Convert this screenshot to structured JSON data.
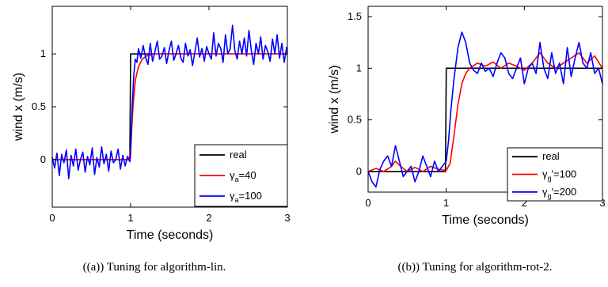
{
  "charts": [
    {
      "caption": "((a)) Tuning for algorithm-lin.",
      "chart_data": {
        "type": "line",
        "xlabel": "Time (seconds)",
        "ylabel": "wind x (m/s)",
        "xlim": [
          0,
          3
        ],
        "ylim": [
          -0.45,
          1.45
        ],
        "xticks": [
          "0",
          "1",
          "2",
          "3"
        ],
        "yticks": [
          "0",
          "0.5",
          "1"
        ],
        "grid": false,
        "legend_position": "bottom-right",
        "series": [
          {
            "name": "real",
            "label_main": "real",
            "label_sub": "",
            "label_tail": "",
            "color": "#000000",
            "x": [
              0,
              0.99,
              1.0,
              3.0
            ],
            "y": [
              0,
              0,
              1,
              1
            ]
          },
          {
            "name": "γa=40",
            "label_main": "γ",
            "label_sub": "a",
            "label_tail": "=40",
            "color": "#ff0000",
            "x": [
              0,
              0.5,
              0.98,
              1.0,
              1.03,
              1.06,
              1.1,
              1.15,
              1.2,
              1.3,
              1.5,
              2.0,
              2.5,
              3.0
            ],
            "y": [
              0,
              0,
              0,
              0.1,
              0.5,
              0.75,
              0.88,
              0.95,
              0.98,
              1.0,
              1.0,
              1.0,
              1.0,
              1.0
            ]
          },
          {
            "name": "γa=100",
            "label_main": "γ",
            "label_sub": "a",
            "label_tail": "=100",
            "color": "#0000ff",
            "x": [
              0,
              0.03,
              0.06,
              0.09,
              0.12,
              0.15,
              0.18,
              0.21,
              0.24,
              0.27,
              0.3,
              0.33,
              0.36,
              0.39,
              0.42,
              0.45,
              0.48,
              0.51,
              0.54,
              0.57,
              0.6,
              0.63,
              0.66,
              0.69,
              0.72,
              0.75,
              0.78,
              0.81,
              0.84,
              0.87,
              0.9,
              0.93,
              0.96,
              0.99,
              1.0,
              1.02,
              1.04,
              1.06,
              1.08,
              1.1,
              1.13,
              1.16,
              1.19,
              1.22,
              1.25,
              1.28,
              1.31,
              1.34,
              1.37,
              1.4,
              1.43,
              1.46,
              1.49,
              1.52,
              1.55,
              1.58,
              1.61,
              1.64,
              1.67,
              1.7,
              1.73,
              1.76,
              1.79,
              1.82,
              1.85,
              1.88,
              1.91,
              1.94,
              1.97,
              2.0,
              2.03,
              2.06,
              2.09,
              2.12,
              2.15,
              2.18,
              2.21,
              2.24,
              2.27,
              2.3,
              2.33,
              2.36,
              2.39,
              2.42,
              2.45,
              2.48,
              2.51,
              2.54,
              2.57,
              2.6,
              2.63,
              2.66,
              2.69,
              2.72,
              2.75,
              2.78,
              2.81,
              2.84,
              2.87,
              2.9,
              2.93,
              2.96,
              2.99,
              3.0
            ],
            "y": [
              0.02,
              -0.08,
              0.06,
              -0.15,
              0.05,
              -0.03,
              0.09,
              -0.18,
              0.04,
              -0.06,
              0.1,
              -0.1,
              0.0,
              0.07,
              -0.12,
              0.03,
              -0.05,
              0.11,
              -0.14,
              0.02,
              -0.07,
              0.12,
              -0.04,
              0.05,
              -0.11,
              0.08,
              -0.03,
              0.0,
              0.1,
              -0.09,
              0.04,
              -0.06,
              0.03,
              -0.02,
              0.05,
              0.5,
              0.8,
              0.95,
              0.92,
              1.05,
              0.96,
              1.08,
              0.97,
              0.9,
              1.1,
              0.93,
              1.02,
              1.12,
              0.95,
              0.98,
              1.06,
              0.91,
              1.03,
              1.12,
              0.94,
              1.0,
              1.08,
              0.96,
              0.92,
              1.1,
              0.98,
              1.04,
              0.89,
              1.02,
              1.15,
              0.97,
              1.05,
              0.93,
              1.07,
              1.0,
              0.95,
              1.2,
              0.98,
              1.1,
              1.05,
              0.92,
              1.18,
              1.0,
              1.05,
              1.27,
              1.03,
              0.95,
              1.12,
              1.0,
              1.15,
              0.98,
              1.22,
              1.03,
              0.9,
              1.1,
              1.0,
              1.16,
              0.95,
              1.08,
              1.02,
              0.93,
              1.14,
              1.0,
              1.18,
              0.96,
              1.1,
              0.92,
              1.06,
              1.0
            ]
          }
        ]
      }
    },
    {
      "caption": "((b)) Tuning for algorithm-rot-2.",
      "chart_data": {
        "type": "line",
        "xlabel": "Time (seconds)",
        "ylabel": "wind x (m/s)",
        "xlim": [
          0,
          3
        ],
        "ylim": [
          -0.2,
          1.6
        ],
        "xticks": [
          "0",
          "1",
          "2",
          "3"
        ],
        "yticks": [
          "0",
          "0.5",
          "1",
          "1.5"
        ],
        "grid": false,
        "legend_position": "bottom-right",
        "series": [
          {
            "name": "real",
            "label_main": "real",
            "label_sub": "",
            "label_tail": "",
            "color": "#000000",
            "x": [
              0,
              0.99,
              1.0,
              3.0
            ],
            "y": [
              0,
              0,
              1,
              1
            ]
          },
          {
            "name": "γg'=100",
            "label_main": "γ",
            "label_sub": "g",
            "label_tail": "'=100",
            "color": "#ff0000",
            "x": [
              0,
              0.1,
              0.2,
              0.3,
              0.35,
              0.4,
              0.5,
              0.6,
              0.7,
              0.8,
              0.9,
              1.0,
              1.05,
              1.1,
              1.15,
              1.2,
              1.25,
              1.3,
              1.4,
              1.5,
              1.6,
              1.7,
              1.8,
              1.9,
              2.0,
              2.1,
              2.2,
              2.3,
              2.4,
              2.5,
              2.6,
              2.7,
              2.8,
              2.9,
              3.0
            ],
            "y": [
              0.0,
              0.03,
              0.0,
              0.05,
              0.1,
              0.06,
              0.0,
              0.04,
              0.0,
              0.05,
              0.02,
              0.01,
              0.08,
              0.35,
              0.65,
              0.85,
              0.95,
              1.0,
              1.05,
              1.02,
              1.06,
              1.0,
              1.05,
              1.02,
              0.98,
              1.05,
              1.15,
              1.05,
              1.0,
              1.05,
              1.1,
              1.15,
              1.05,
              1.12,
              1.0
            ]
          },
          {
            "name": "γg'=200",
            "label_main": "γ",
            "label_sub": "g",
            "label_tail": "'=200",
            "color": "#0000ff",
            "x": [
              0,
              0.05,
              0.1,
              0.15,
              0.2,
              0.25,
              0.3,
              0.35,
              0.4,
              0.45,
              0.5,
              0.55,
              0.6,
              0.65,
              0.7,
              0.75,
              0.8,
              0.85,
              0.9,
              0.95,
              1.0,
              1.03,
              1.06,
              1.1,
              1.15,
              1.2,
              1.25,
              1.3,
              1.35,
              1.4,
              1.45,
              1.5,
              1.55,
              1.6,
              1.65,
              1.7,
              1.75,
              1.8,
              1.85,
              1.9,
              1.95,
              2.0,
              2.05,
              2.1,
              2.15,
              2.2,
              2.25,
              2.3,
              2.35,
              2.4,
              2.45,
              2.5,
              2.55,
              2.6,
              2.65,
              2.7,
              2.75,
              2.8,
              2.85,
              2.9,
              2.95,
              3.0
            ],
            "y": [
              0.0,
              -0.1,
              -0.15,
              0.02,
              0.1,
              0.15,
              0.05,
              0.25,
              0.1,
              -0.05,
              0.0,
              0.05,
              -0.1,
              0.0,
              0.15,
              0.05,
              -0.05,
              0.1,
              0.0,
              0.05,
              0.1,
              0.3,
              0.6,
              0.9,
              1.2,
              1.35,
              1.25,
              1.05,
              0.98,
              0.95,
              1.05,
              0.97,
              1.0,
              0.92,
              1.05,
              1.15,
              1.1,
              0.95,
              0.9,
              1.0,
              1.1,
              0.85,
              1.0,
              1.05,
              0.95,
              1.25,
              1.0,
              0.9,
              1.15,
              0.95,
              1.05,
              0.85,
              1.2,
              0.92,
              1.1,
              1.25,
              1.05,
              1.0,
              1.15,
              0.95,
              1.0,
              0.85
            ]
          }
        ]
      }
    }
  ]
}
